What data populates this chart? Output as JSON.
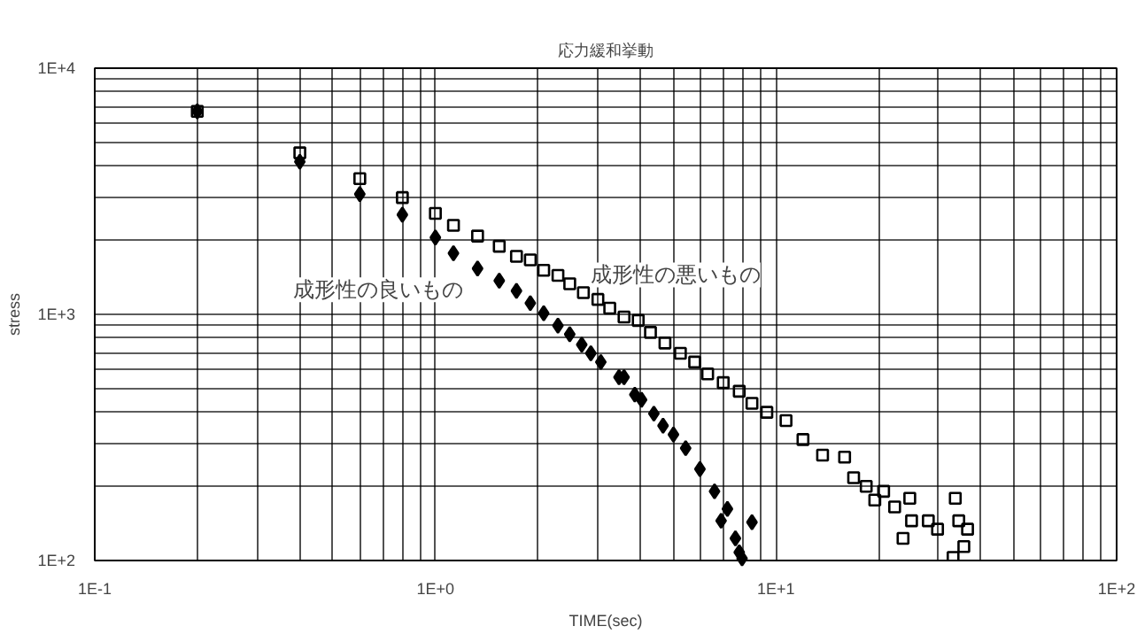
{
  "chart_data": {
    "type": "scatter",
    "title": "応力緩和挙動",
    "xlabel": "TIME(sec)",
    "ylabel": "stress",
    "log": "xy",
    "grid": true,
    "legend": false,
    "xlim": [
      0.1,
      100
    ],
    "ylim": [
      100,
      10000
    ],
    "xticks": [
      {
        "value": 0.1,
        "label": "1E-1"
      },
      {
        "value": 1,
        "label": "1E+0"
      },
      {
        "value": 10,
        "label": "1E+1"
      },
      {
        "value": 100,
        "label": "1E+2"
      }
    ],
    "yticks": [
      {
        "value": 100,
        "label": "1E+2"
      },
      {
        "value": 1000,
        "label": "1E+3"
      },
      {
        "value": 10000,
        "label": "1E+4"
      }
    ],
    "series": [
      {
        "name": "成形性の良いもの",
        "color": "#000000",
        "marker": "diamond",
        "x": [
          0.2,
          0.4,
          0.6,
          0.8,
          1.0,
          1.13,
          1.33,
          1.54,
          1.73,
          1.9,
          2.08,
          2.29,
          2.48,
          2.69,
          2.86,
          3.06,
          3.46,
          3.58,
          3.85,
          4.03,
          4.38,
          4.66,
          5.0,
          5.43,
          5.98,
          6.6,
          7.2,
          6.9,
          7.6,
          7.8,
          7.95,
          8.5
        ],
        "values": [
          6680,
          4170,
          3080,
          2540,
          2050,
          1770,
          1535,
          1370,
          1245,
          1110,
          1010,
          900,
          830,
          753,
          695,
          640,
          555,
          555,
          472,
          450,
          395,
          353,
          325,
          286,
          235,
          191,
          162,
          145,
          123,
          108,
          102,
          143
        ]
      },
      {
        "name": "成形性の悪いもの",
        "color": "#000000",
        "marker": "square",
        "x": [
          0.2,
          0.4,
          0.6,
          0.8,
          1.0,
          1.13,
          1.33,
          1.54,
          1.73,
          1.9,
          2.08,
          2.29,
          2.48,
          2.72,
          3.0,
          3.25,
          3.58,
          3.94,
          4.28,
          4.72,
          5.24,
          5.77,
          6.3,
          7.0,
          7.8,
          8.5,
          9.4,
          10.7,
          12.0,
          13.7,
          15.9,
          16.9,
          18.4,
          19.5,
          20.7,
          22.3,
          24.7,
          25.0,
          23.6,
          28.0,
          29.8,
          33.6,
          34.4,
          36.5,
          35.6,
          33.1
        ],
        "values": [
          6680,
          4530,
          3560,
          2980,
          2570,
          2300,
          2080,
          1890,
          1720,
          1665,
          1510,
          1440,
          1330,
          1225,
          1150,
          1060,
          975,
          945,
          845,
          765,
          695,
          640,
          573,
          528,
          487,
          435,
          400,
          370,
          310,
          268,
          263,
          217,
          200,
          176,
          191,
          165,
          179,
          145,
          123,
          145,
          134,
          179,
          145,
          134,
          114,
          103
        ]
      }
    ]
  }
}
